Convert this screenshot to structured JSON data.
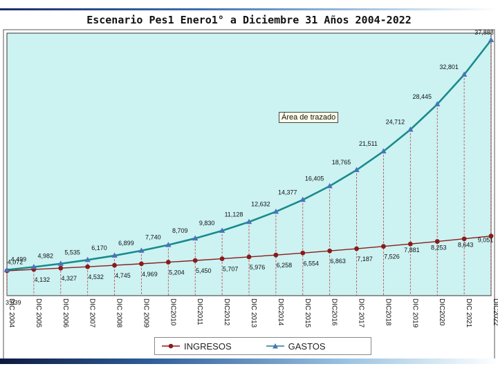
{
  "chart_data": {
    "type": "line",
    "title": "Escenario Pes1 Enero1° a Diciembre 31 Años 2004-2022",
    "categories": [
      "DIC 2004",
      "DIC 2005",
      "DIC 2006",
      "DIC 2007",
      "DIC 2008",
      "DIC  2009",
      "DIC2010",
      "DIC2011",
      "DIC2012",
      "DIC  2013",
      "DIC2014",
      "DIC  2015",
      "DIC2016",
      "DIC  2017",
      "DIC2018",
      "DIC  2019",
      "DIC2020",
      "DIC  2021",
      "DIC2022"
    ],
    "series": [
      {
        "name": "INGRESOS",
        "color": "#8b1a1a",
        "marker": "circle",
        "values": [
          3939,
          4132,
          4327,
          4532,
          4745,
          4969,
          5204,
          5450,
          5707,
          5976,
          6258,
          6554,
          6863,
          7187,
          7526,
          7881,
          8253,
          8643,
          9051
        ],
        "labels": [
          "3,939",
          "4,132",
          "4,327",
          "4,532",
          "4,745",
          "4,969",
          "5,204",
          "5,450",
          "5,707",
          "5,976",
          "6,258",
          "6,554",
          "6,863",
          "7,187",
          "7,526",
          "7,881",
          "8,253",
          "8,643",
          "9,051"
        ]
      },
      {
        "name": "GASTOS",
        "color": "#1f7f8c",
        "marker": "triangle",
        "values": [
          4072,
          4499,
          4982,
          5535,
          6170,
          6899,
          7740,
          8709,
          9830,
          11128,
          12632,
          14377,
          16405,
          18765,
          21511,
          24712,
          28445,
          32801,
          37888
        ],
        "labels": [
          "4,072",
          "4,499",
          "4,982",
          "5,535",
          "6,170",
          "6,899",
          "7,740",
          "8,709",
          "9,830",
          "11,128",
          "12,632",
          "14,377",
          "16,405",
          "18,765",
          "21,511",
          "24,712",
          "28,445",
          "32,801",
          "37,888"
        ]
      }
    ],
    "ylim": [
      0,
      38600
    ],
    "grid": false,
    "drop_lines": true,
    "legend_position": "bottom",
    "plot_background": "#ccf2f2",
    "annotation": "Área de trazado"
  }
}
